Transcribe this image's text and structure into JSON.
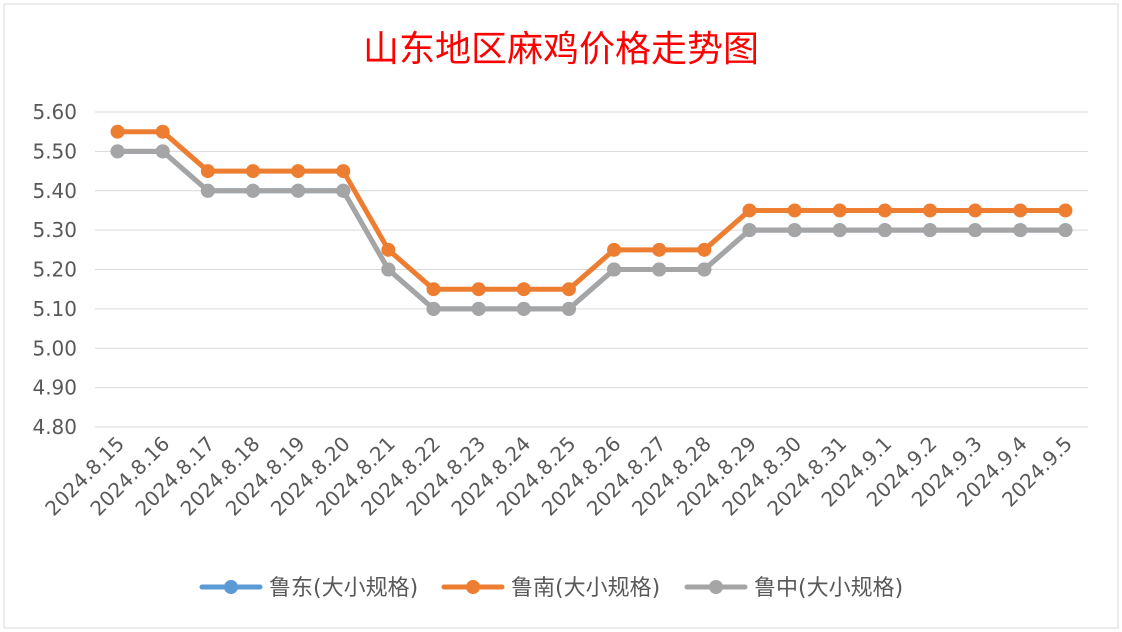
{
  "chart_data": {
    "type": "line",
    "title": "山东地区麻鸡价格走势图",
    "xlabel": "",
    "ylabel": "",
    "ylim": [
      4.8,
      5.6
    ],
    "ytick_step": 0.1,
    "y_tick_labels": [
      "4.80",
      "4.90",
      "5.00",
      "5.10",
      "5.20",
      "5.30",
      "5.40",
      "5.50",
      "5.60"
    ],
    "grid": true,
    "legend_position": "bottom",
    "categories": [
      "2024.8.15",
      "2024.8.16",
      "2024.8.17",
      "2024.8.18",
      "2024.8.19",
      "2024.8.20",
      "2024.8.21",
      "2024.8.22",
      "2024.8.23",
      "2024.8.24",
      "2024.8.25",
      "2024.8.26",
      "2024.8.27",
      "2024.8.28",
      "2024.8.29",
      "2024.8.30",
      "2024.8.31",
      "2024.9.1",
      "2024.9.2",
      "2024.9.3",
      "2024.9.4",
      "2024.9.5"
    ],
    "series": [
      {
        "name": "鲁东(大小规格)",
        "color": "#5b9bd5",
        "values": [
          5.5,
          5.5,
          5.4,
          5.4,
          5.4,
          5.4,
          5.2,
          5.1,
          5.1,
          5.1,
          5.1,
          5.2,
          5.2,
          5.2,
          5.3,
          5.3,
          5.3,
          5.3,
          5.3,
          5.3,
          5.3,
          5.3
        ]
      },
      {
        "name": "鲁南(大小规格)",
        "color": "#ed7d31",
        "values": [
          5.55,
          5.55,
          5.45,
          5.45,
          5.45,
          5.45,
          5.25,
          5.15,
          5.15,
          5.15,
          5.15,
          5.25,
          5.25,
          5.25,
          5.35,
          5.35,
          5.35,
          5.35,
          5.35,
          5.35,
          5.35,
          5.35
        ]
      },
      {
        "name": "鲁中(大小规格)",
        "color": "#a5a5a5",
        "values": [
          5.5,
          5.5,
          5.4,
          5.4,
          5.4,
          5.4,
          5.2,
          5.1,
          5.1,
          5.1,
          5.1,
          5.2,
          5.2,
          5.2,
          5.3,
          5.3,
          5.3,
          5.3,
          5.3,
          5.3,
          5.3,
          5.3
        ]
      }
    ],
    "grid_color": "#d9d9d9",
    "border_color": "#d9d9d9"
  }
}
